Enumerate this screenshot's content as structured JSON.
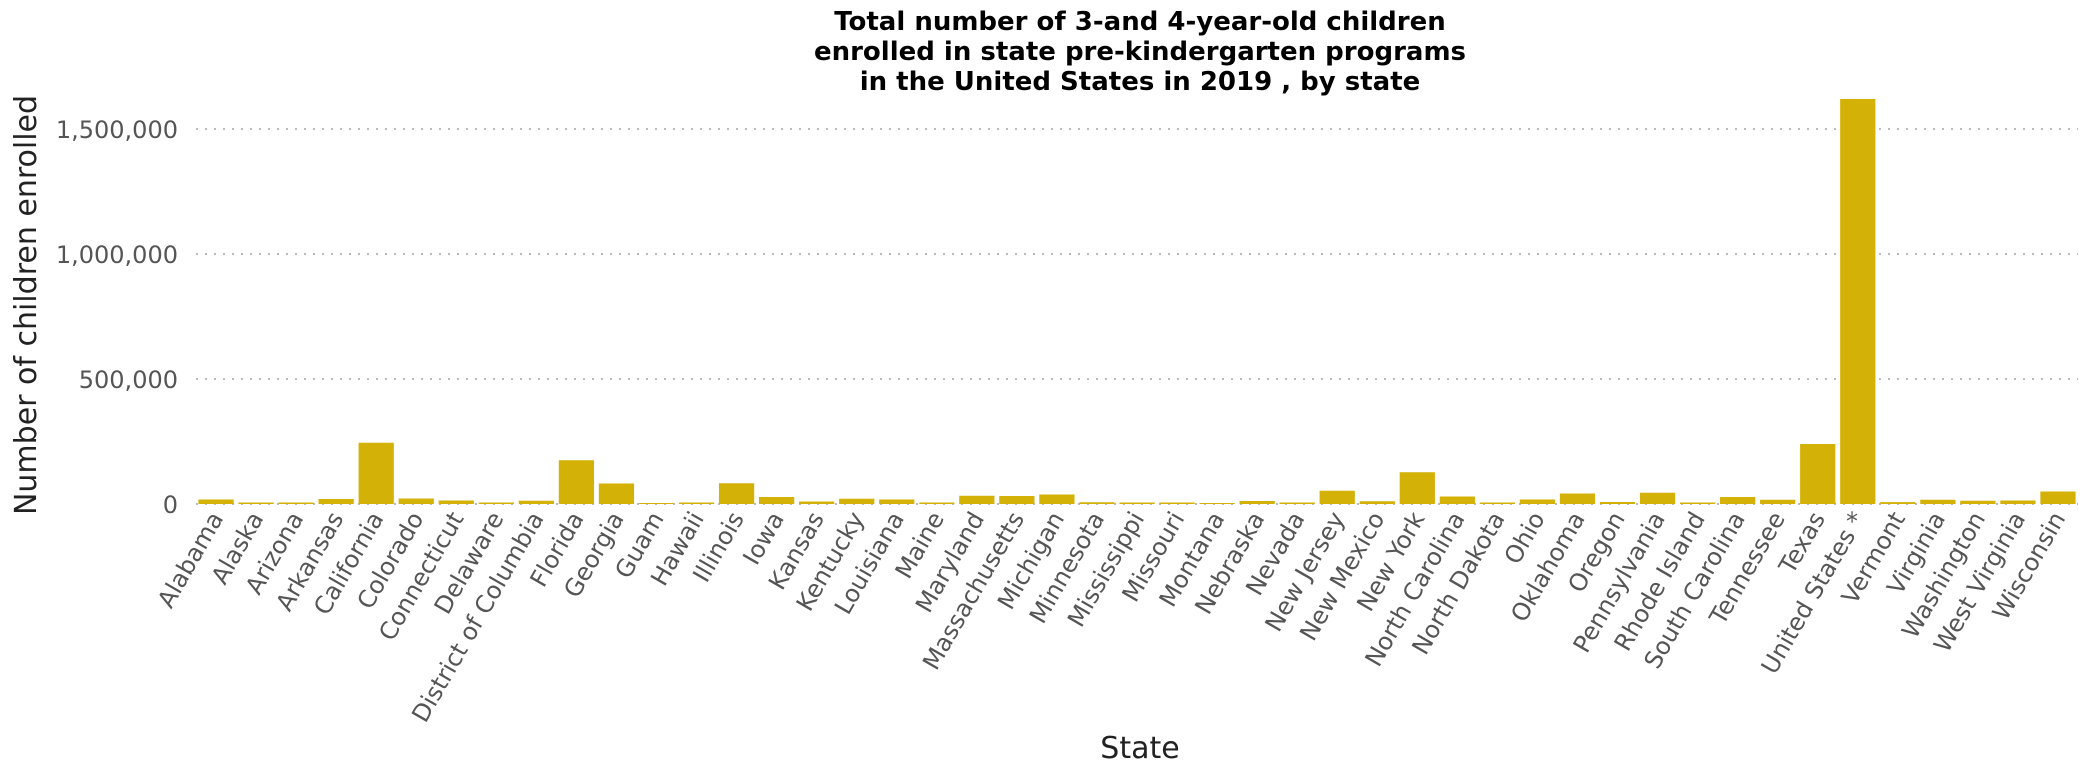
{
  "chart_data": {
    "type": "bar",
    "title": [
      "Total number of 3-and 4-year-old children",
      "enrolled in state pre-kindergarten programs",
      "in the United States in 2019 , by state"
    ],
    "xlabel": "State",
    "ylabel": "Number of children enrolled",
    "ylim": [
      0,
      1800000
    ],
    "yticks": [
      0,
      500000,
      1000000,
      1500000
    ],
    "ytick_labels": [
      "0",
      "500,000",
      "1,000,000",
      "1,500,000"
    ],
    "grid": "horizontal-dotted",
    "bar_color": "#d4b106",
    "categories": [
      "Alabama",
      "Alaska",
      "Arizona",
      "Arkansas",
      "California",
      "Colorado",
      "Connecticut",
      "Delaware",
      "District of Columbia",
      "Florida",
      "Georgia",
      "Guam",
      "Hawaii",
      "Illinois",
      "Iowa",
      "Kansas",
      "Kentucky",
      "Louisiana",
      "Maine",
      "Maryland",
      "Massachusetts",
      "Michigan",
      "Minnesota",
      "Mississippi",
      "Missouri",
      "Montana",
      "Nebraska",
      "Nevada",
      "New Jersey",
      "New Mexico",
      "New York",
      "North Carolina",
      "North Dakota",
      "Ohio",
      "Oklahoma",
      "Oregon",
      "Pennsylvania",
      "Rhode Island",
      "South Carolina",
      "Tennessee",
      "Texas",
      "United States *",
      "Vermont",
      "Virginia",
      "Washington",
      "West Virginia",
      "Wisconsin"
    ],
    "values": [
      18000,
      1000,
      5000,
      20000,
      245000,
      22000,
      14000,
      800,
      13000,
      175000,
      82000,
      0,
      500,
      83000,
      28000,
      10000,
      21000,
      18000,
      6000,
      33000,
      32000,
      38000,
      7000,
      3500,
      4000,
      0,
      12000,
      1500,
      53000,
      11000,
      127000,
      30000,
      300,
      18000,
      42000,
      8000,
      45000,
      1100,
      28000,
      17000,
      240000,
      1620000,
      7500,
      17000,
      13000,
      14000,
      50000
    ]
  }
}
